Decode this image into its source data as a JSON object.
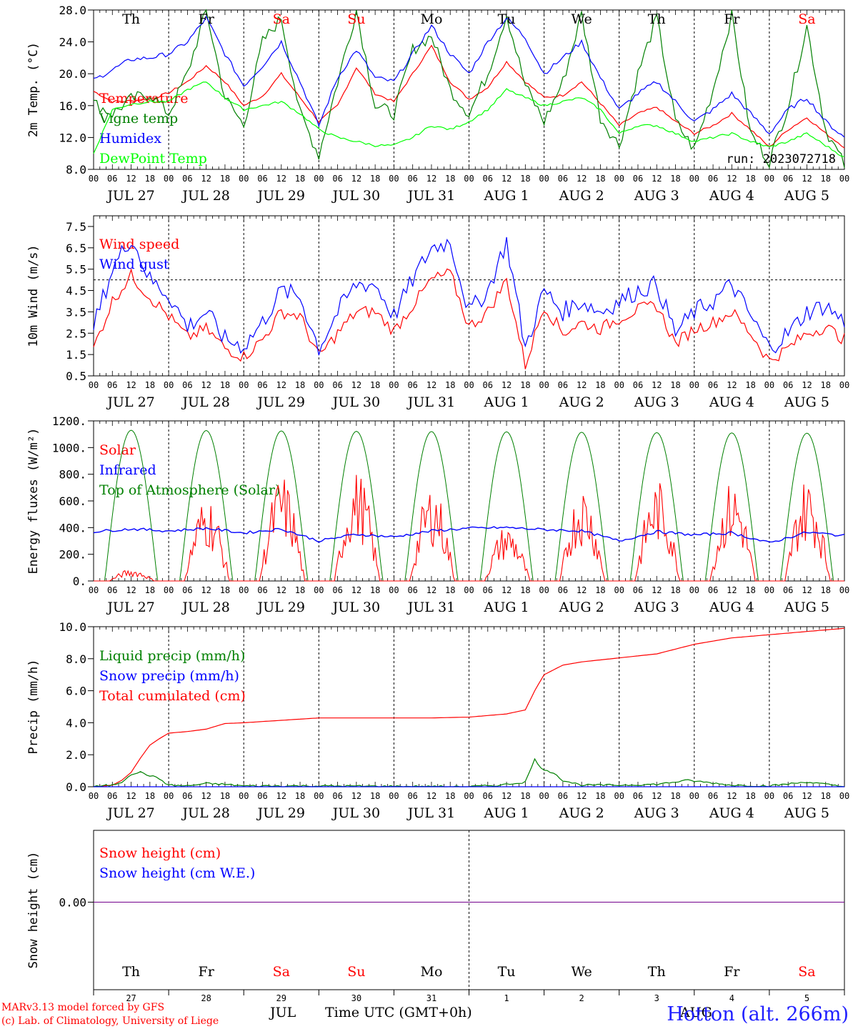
{
  "chart_data": {
    "type": "line",
    "run_label": "run: 2023072718",
    "location": "Hotton (alt. 266m)",
    "credits": [
      "MARv3.13 model forced by GFS",
      "(c) Lab. of Climatology, University of Liege"
    ],
    "xlabel": "Time UTC (GMT+0h)",
    "x_hour_ticks": [
      "00",
      "06",
      "12",
      "18"
    ],
    "dates": [
      "JUL 27",
      "JUL 28",
      "JUL 29",
      "JUL 30",
      "JUL 31",
      "AUG  1",
      "AUG  2",
      "AUG  3",
      "AUG  4",
      "AUG  5"
    ],
    "weekdays": [
      "Th",
      "Fr",
      "Sa",
      "Su",
      "Mo",
      "Tu",
      "We",
      "Th",
      "Fr",
      "Sa"
    ],
    "weekend_color": "#ff0000",
    "bottom_day_numbers": [
      "27",
      "28",
      "29",
      "30",
      "31",
      "1",
      "2",
      "3",
      "4",
      "5"
    ],
    "bottom_months": [
      "JUL",
      "AUG"
    ],
    "panels": [
      {
        "id": "temperature",
        "ylabel": "2m Temp. (°C)",
        "ylim": [
          8.0,
          28.0
        ],
        "yticks": [
          "8.0",
          "12.0",
          "16.0",
          "20.0",
          "24.0",
          "28.0"
        ],
        "legend": [
          {
            "name": "Temperature",
            "color": "#ff0000"
          },
          {
            "name": "Vigne temp",
            "color": "#008000"
          },
          {
            "name": "Humidex",
            "color": "#0000ff"
          },
          {
            "name": "DewPoint Temp",
            "color": "#00ff00"
          }
        ],
        "series": [
          {
            "name": "Temperature",
            "color": "#ff0000",
            "x_hours": [
              0,
              6,
              12,
              18,
              24,
              30,
              36,
              42,
              48,
              54,
              60,
              66,
              72,
              78,
              84,
              90,
              96,
              102,
              108,
              114,
              120,
              126,
              132,
              138,
              144,
              150,
              156,
              162,
              168,
              174,
              180,
              186,
              192,
              198,
              204,
              210,
              216,
              222,
              228,
              234,
              240
            ],
            "values": [
              17.8,
              16.5,
              16.6,
              16.8,
              17.6,
              19.0,
              21.0,
              19.0,
              16.0,
              17.2,
              20.0,
              17.0,
              14.0,
              16.0,
              20.8,
              17.5,
              16.5,
              20.0,
              23.5,
              19.0,
              16.8,
              18.3,
              21.5,
              19.0,
              17.0,
              17.3,
              19.0,
              16.3,
              13.5,
              15.0,
              15.8,
              14.0,
              12.5,
              13.5,
              15.0,
              13.0,
              10.8,
              13.0,
              14.5,
              12.5,
              10.8
            ]
          },
          {
            "name": "Vigne temp",
            "color": "#008000",
            "x_hours": [
              0,
              6,
              12,
              18,
              24,
              30,
              36,
              42,
              48,
              54,
              60,
              66,
              72,
              78,
              84,
              90,
              96,
              102,
              108,
              114,
              120,
              126,
              132,
              138,
              144,
              150,
              156,
              162,
              168,
              174,
              180,
              186,
              192,
              198,
              204,
              210,
              216,
              222,
              228,
              234,
              240
            ],
            "values": [
              16.3,
              15.0,
              16.8,
              17.5,
              15.0,
              20.0,
              28.0,
              17.0,
              13.5,
              24.0,
              27.0,
              15.0,
              9.8,
              19.0,
              28.0,
              16.0,
              15.0,
              23.0,
              24.8,
              18.0,
              15.0,
              20.0,
              27.5,
              18.5,
              14.0,
              19.0,
              27.5,
              14.5,
              11.0,
              20.0,
              27.0,
              14.0,
              10.5,
              18.0,
              27.5,
              12.5,
              9.0,
              16.0,
              26.0,
              13.0,
              8.5
            ]
          },
          {
            "name": "Humidex",
            "color": "#0000ff",
            "x_hours": [
              0,
              6,
              12,
              18,
              24,
              30,
              36,
              42,
              48,
              54,
              60,
              66,
              72,
              78,
              84,
              90,
              96,
              102,
              108,
              114,
              120,
              126,
              132,
              138,
              144,
              150,
              156,
              162,
              168,
              174,
              180,
              186,
              192,
              198,
              204,
              210,
              216,
              222,
              228,
              234,
              240
            ],
            "values": [
              19.2,
              20.5,
              21.8,
              22.0,
              22.5,
              24.0,
              27.0,
              22.5,
              18.5,
              21.0,
              24.0,
              19.0,
              13.5,
              19.5,
              23.0,
              19.5,
              19.0,
              22.5,
              26.0,
              22.5,
              20.0,
              24.0,
              27.0,
              24.5,
              20.0,
              22.0,
              24.0,
              19.5,
              15.5,
              17.5,
              19.0,
              16.5,
              14.0,
              15.5,
              17.5,
              15.0,
              12.5,
              15.5,
              17.0,
              14.0,
              12.0
            ]
          },
          {
            "name": "DewPoint Temp",
            "color": "#00ff00",
            "x_hours": [
              0,
              6,
              12,
              18,
              24,
              30,
              36,
              42,
              48,
              54,
              60,
              66,
              72,
              78,
              84,
              90,
              96,
              102,
              108,
              114,
              120,
              126,
              132,
              138,
              144,
              150,
              156,
              162,
              168,
              174,
              180,
              186,
              192,
              198,
              204,
              210,
              216,
              222,
              228,
              234,
              240
            ],
            "values": [
              10.0,
              15.5,
              16.2,
              16.5,
              16.5,
              18.0,
              19.0,
              17.0,
              15.5,
              16.0,
              16.5,
              15.0,
              13.0,
              12.0,
              11.5,
              11.0,
              11.0,
              12.0,
              13.5,
              13.0,
              14.0,
              15.5,
              18.0,
              17.0,
              16.0,
              16.5,
              17.0,
              15.5,
              12.5,
              13.5,
              13.5,
              12.5,
              11.5,
              12.0,
              12.5,
              11.5,
              10.8,
              11.5,
              12.5,
              11.0,
              9.5
            ]
          }
        ]
      },
      {
        "id": "wind",
        "ylabel": "10m Wind (m/s)",
        "ylim": [
          0.5,
          8.0
        ],
        "yticks": [
          "0.5",
          "1.5",
          "2.5",
          "3.5",
          "4.5",
          "5.5",
          "6.5",
          "7.5"
        ],
        "reference_line": 5.0,
        "legend": [
          {
            "name": "Wind speed",
            "color": "#ff0000"
          },
          {
            "name": "Wind gust",
            "color": "#0000ff"
          }
        ],
        "series": [
          {
            "name": "Wind speed",
            "color": "#ff0000",
            "x_hours": [
              0,
              6,
              12,
              18,
              24,
              30,
              36,
              42,
              48,
              54,
              60,
              66,
              72,
              78,
              84,
              90,
              96,
              102,
              108,
              114,
              120,
              126,
              132,
              138,
              144,
              150,
              156,
              162,
              168,
              174,
              180,
              186,
              192,
              198,
              204,
              210,
              216,
              222,
              228,
              234,
              240
            ],
            "values": [
              1.8,
              4.0,
              5.2,
              4.2,
              3.3,
              2.3,
              2.7,
              1.8,
              1.4,
              2.2,
              3.5,
              3.3,
              1.4,
              2.5,
              3.5,
              3.5,
              2.6,
              3.8,
              5.0,
              5.3,
              2.8,
              3.5,
              5.0,
              1.0,
              3.8,
              2.5,
              3.0,
              2.7,
              3.2,
              3.6,
              3.8,
              2.0,
              2.7,
              3.0,
              3.5,
              2.5,
              1.2,
              1.8,
              2.5,
              2.8,
              2.2
            ]
          },
          {
            "name": "Wind gust",
            "color": "#0000ff",
            "x_hours": [
              0,
              6,
              12,
              18,
              24,
              30,
              36,
              42,
              48,
              54,
              60,
              66,
              72,
              78,
              84,
              90,
              96,
              102,
              108,
              114,
              120,
              126,
              132,
              138,
              144,
              150,
              156,
              162,
              168,
              174,
              180,
              186,
              192,
              198,
              204,
              210,
              216,
              222,
              228,
              234,
              240
            ],
            "values": [
              2.8,
              5.5,
              7.0,
              5.0,
              4.3,
              2.8,
              3.5,
              2.2,
              1.9,
              3.0,
              4.5,
              4.2,
              1.8,
              3.5,
              4.8,
              4.8,
              3.3,
              5.0,
              6.5,
              6.8,
              3.5,
              4.5,
              6.8,
              1.8,
              4.5,
              3.5,
              4.0,
              3.5,
              4.0,
              4.5,
              4.8,
              2.5,
              3.5,
              4.0,
              4.8,
              3.3,
              1.8,
              2.5,
              3.5,
              3.8,
              3.0
            ]
          }
        ]
      },
      {
        "id": "energy",
        "ylabel": "Energy fluxes (W/m²)",
        "ylim": [
          0,
          1200
        ],
        "yticks": [
          "0.",
          "200.",
          "400.",
          "600.",
          "800.",
          "1000.",
          "1200."
        ],
        "legend": [
          {
            "name": "Solar",
            "color": "#ff0000"
          },
          {
            "name": "Infrared",
            "color": "#0000ff"
          },
          {
            "name": "Top of Atmosphere (Solar)",
            "color": "#008000"
          }
        ],
        "toa_daily_peak": [
          1130,
          1128,
          1125,
          1122,
          1120,
          1118,
          1115,
          1112,
          1110,
          1108
        ],
        "solar_daily_peak": [
          90,
          650,
          800,
          830,
          730,
          430,
          730,
          760,
          760,
          790
        ],
        "infrared": {
          "name": "Infrared",
          "color": "#0000ff",
          "x_hours": [
            0,
            12,
            24,
            36,
            48,
            60,
            72,
            84,
            96,
            108,
            120,
            132,
            144,
            156,
            168,
            180,
            192,
            204,
            216,
            228,
            240
          ],
          "values": [
            370,
            390,
            375,
            395,
            360,
            390,
            300,
            350,
            330,
            375,
            395,
            400,
            385,
            375,
            300,
            370,
            345,
            360,
            285,
            365,
            340
          ]
        }
      },
      {
        "id": "precip",
        "ylabel": "Precip (mm/h)",
        "ylim": [
          0,
          10
        ],
        "yticks": [
          "0.0",
          "2.0",
          "4.0",
          "6.0",
          "8.0",
          "10.0"
        ],
        "legend": [
          {
            "name": "Liquid precip (mm/h)",
            "color": "#008000"
          },
          {
            "name": "Snow precip (mm/h)",
            "color": "#0000ff"
          },
          {
            "name": "Total cumulated (cm)",
            "color": "#ff0000"
          }
        ],
        "series": [
          {
            "name": "Total cumulated (cm)",
            "color": "#ff0000",
            "x_hours": [
              0,
              6,
              9,
              12,
              15,
              18,
              21,
              24,
              30,
              36,
              42,
              48,
              60,
              72,
              84,
              96,
              108,
              120,
              132,
              138,
              141,
              144,
              150,
              156,
              168,
              180,
              192,
              204,
              216,
              228,
              240
            ],
            "values": [
              0.0,
              0.1,
              0.4,
              0.9,
              1.8,
              2.6,
              3.0,
              3.35,
              3.45,
              3.6,
              3.95,
              4.0,
              4.15,
              4.3,
              4.3,
              4.3,
              4.3,
              4.35,
              4.55,
              4.8,
              6.0,
              7.0,
              7.6,
              7.8,
              8.05,
              8.3,
              8.9,
              9.3,
              9.5,
              9.7,
              9.9
            ]
          },
          {
            "name": "Liquid precip (mm/h)",
            "color": "#008000",
            "x_hours": [
              0,
              6,
              9,
              12,
              15,
              18,
              21,
              24,
              30,
              36,
              42,
              48,
              72,
              120,
              130,
              138,
              141,
              144,
              147,
              150,
              156,
              168,
              180,
              190,
              204,
              216,
              228,
              240
            ],
            "values": [
              0,
              0.1,
              0.3,
              0.8,
              0.9,
              0.7,
              0.5,
              0.1,
              0.05,
              0.2,
              0.15,
              0.05,
              0.05,
              0,
              0.1,
              0.3,
              1.7,
              1.0,
              0.9,
              0.4,
              0.1,
              0.1,
              0.15,
              0.4,
              0.1,
              0.05,
              0.3,
              0
            ]
          },
          {
            "name": "Snow precip (mm/h)",
            "color": "#0000ff",
            "x_hours": [
              0,
              240
            ],
            "values": [
              0,
              0
            ]
          }
        ]
      },
      {
        "id": "snow",
        "ylabel": "Snow height (cm)",
        "yticks": [
          "0.00"
        ],
        "legend": [
          {
            "name": "Snow height (cm)",
            "color": "#ff0000"
          },
          {
            "name": "Snow height (cm W.E.)",
            "color": "#0000ff"
          }
        ],
        "series": [
          {
            "name": "Snow height (cm)",
            "color": "#ff0000",
            "x_hours": [
              0,
              240
            ],
            "values": [
              0,
              0
            ]
          },
          {
            "name": "Snow height (cm W.E.)",
            "color": "#0000ff",
            "x_hours": [
              0,
              240
            ],
            "values": [
              0,
              0
            ]
          }
        ]
      }
    ]
  }
}
